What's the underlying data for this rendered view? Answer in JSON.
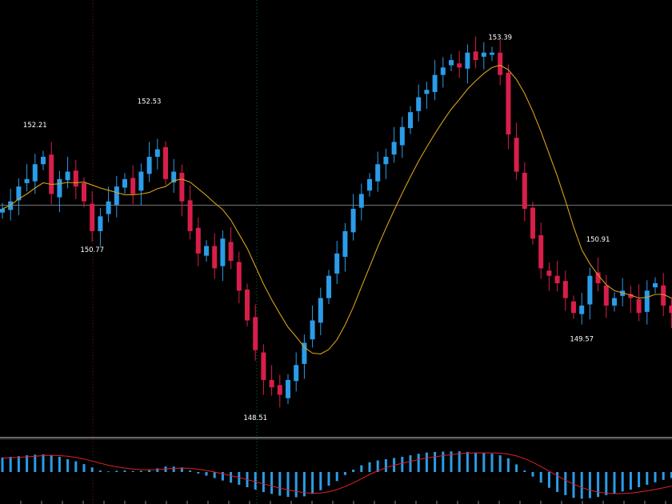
{
  "chart_data": {
    "type": "candlestick",
    "price": {
      "ylim": [
        148.2,
        153.9
      ],
      "horizontal_line": 151.25,
      "up_color": "#2b9ce8",
      "down_color": "#d81e4a",
      "ma_color": "#d6a11a",
      "annotations": [
        {
          "text": "152.21",
          "value": 152.21,
          "bar": 4
        },
        {
          "text": "150.77",
          "value": 150.77,
          "bar": 11
        },
        {
          "text": "152.53",
          "value": 152.53,
          "bar": 18
        },
        {
          "text": "148.51",
          "value": 148.51,
          "bar": 31
        },
        {
          "text": "153.39",
          "value": 153.39,
          "bar": 61
        },
        {
          "text": "150.91",
          "value": 150.91,
          "bar": 73
        },
        {
          "text": "149.57",
          "value": 149.57,
          "bar": 71
        }
      ],
      "close": [
        151.2,
        151.3,
        151.5,
        151.6,
        151.8,
        151.9,
        151.4,
        151.6,
        151.7,
        151.5,
        151.3,
        150.9,
        151.1,
        151.3,
        151.5,
        151.6,
        151.4,
        151.7,
        151.9,
        152.0,
        151.6,
        151.7,
        151.3,
        150.9,
        150.6,
        150.7,
        150.4,
        150.8,
        150.5,
        150.1,
        149.7,
        149.3,
        148.9,
        148.8,
        148.7,
        148.9,
        149.1,
        149.4,
        149.7,
        150.0,
        150.3,
        150.6,
        150.9,
        151.2,
        151.4,
        151.6,
        151.8,
        151.9,
        152.1,
        152.3,
        152.5,
        152.7,
        152.8,
        153.0,
        153.1,
        153.2,
        153.1,
        153.3,
        153.2,
        153.3,
        153.3,
        153.0,
        152.2,
        151.7,
        151.2,
        150.8,
        150.4,
        150.3,
        150.2,
        150.0,
        149.8,
        149.9,
        150.3,
        150.2,
        149.9,
        150.0,
        150.1,
        150.0,
        149.8,
        150.1,
        150.2,
        149.9,
        149.8
      ]
    },
    "indicator": {
      "type": "histogram",
      "ylim": [
        -1,
        1
      ],
      "bar_color": "#2b9ce8",
      "signal_color": "#e0202a",
      "values": [
        0.48,
        0.5,
        0.52,
        0.55,
        0.57,
        0.58,
        0.56,
        0.5,
        0.42,
        0.35,
        0.26,
        0.15,
        0.05,
        0.02,
        0.04,
        0.05,
        0.03,
        0.04,
        0.06,
        0.12,
        0.18,
        0.18,
        0.15,
        0.05,
        -0.05,
        -0.12,
        -0.2,
        -0.28,
        -0.35,
        -0.42,
        -0.5,
        -0.58,
        -0.66,
        -0.72,
        -0.78,
        -0.82,
        -0.83,
        -0.8,
        -0.72,
        -0.6,
        -0.45,
        -0.3,
        -0.1,
        0.08,
        0.22,
        0.32,
        0.38,
        0.42,
        0.46,
        0.5,
        0.55,
        0.6,
        0.64,
        0.66,
        0.67,
        0.68,
        0.68,
        0.66,
        0.64,
        0.62,
        0.6,
        0.55,
        0.45,
        0.25,
        0.05,
        -0.15,
        -0.35,
        -0.52,
        -0.66,
        -0.76,
        -0.85,
        -0.88,
        -0.86,
        -0.82,
        -0.76,
        -0.7,
        -0.64,
        -0.58,
        -0.5,
        -0.42,
        -0.34,
        -0.26,
        -0.2
      ],
      "signal": [
        0.46,
        0.47,
        0.48,
        0.5,
        0.52,
        0.54,
        0.55,
        0.54,
        0.52,
        0.48,
        0.43,
        0.36,
        0.29,
        0.22,
        0.17,
        0.13,
        0.1,
        0.08,
        0.07,
        0.08,
        0.1,
        0.12,
        0.13,
        0.12,
        0.09,
        0.05,
        0.0,
        -0.06,
        -0.12,
        -0.18,
        -0.25,
        -0.32,
        -0.39,
        -0.46,
        -0.53,
        -0.59,
        -0.64,
        -0.68,
        -0.7,
        -0.69,
        -0.65,
        -0.58,
        -0.48,
        -0.36,
        -0.22,
        -0.08,
        0.04,
        0.14,
        0.22,
        0.29,
        0.35,
        0.41,
        0.46,
        0.5,
        0.54,
        0.57,
        0.6,
        0.62,
        0.63,
        0.63,
        0.63,
        0.62,
        0.59,
        0.53,
        0.44,
        0.32,
        0.18,
        0.03,
        -0.12,
        -0.27,
        -0.4,
        -0.51,
        -0.6,
        -0.66,
        -0.7,
        -0.71,
        -0.71,
        -0.69,
        -0.66,
        -0.62,
        -0.57,
        -0.52,
        -0.46
      ]
    }
  }
}
